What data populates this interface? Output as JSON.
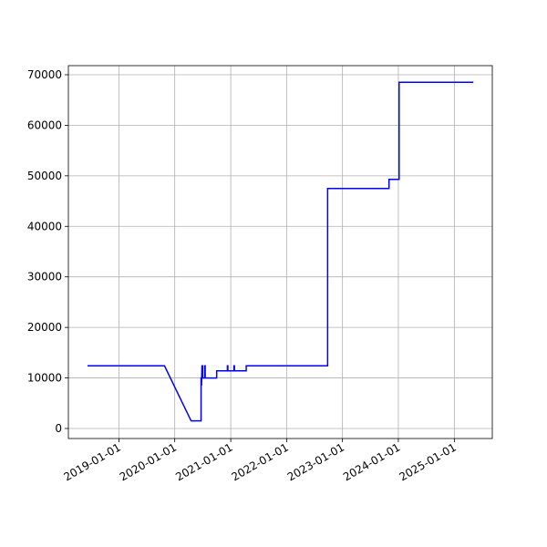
{
  "chart_data": {
    "type": "line",
    "x": [
      "2018-06-10",
      "2019-10-26",
      "2020-04-17",
      "2020-06-21",
      "2020-06-21",
      "2020-06-24",
      "2020-06-24",
      "2020-06-27",
      "2020-07-01",
      "2020-07-01",
      "2020-07-15",
      "2020-07-15",
      "2020-07-18",
      "2020-07-18",
      "2020-10-01",
      "2020-10-01",
      "2020-12-10",
      "2020-12-10",
      "2020-12-13",
      "2020-12-13",
      "2021-01-22",
      "2021-01-22",
      "2021-01-25",
      "2021-01-25",
      "2021-04-12",
      "2021-04-12",
      "2022-09-26",
      "2022-09-26",
      "2023-11-01",
      "2023-11-01",
      "2024-01-06",
      "2024-01-06",
      "2025-05-05"
    ],
    "series": [
      {
        "color": "#0000ff",
        "values": [
          12400,
          12400,
          1500,
          1500,
          10000,
          10000,
          8500,
          12400,
          12400,
          10000,
          10000,
          12400,
          12400,
          10000,
          10000,
          11400,
          11400,
          12400,
          12400,
          11400,
          11400,
          12400,
          12400,
          11400,
          11400,
          12400,
          12400,
          47500,
          47500,
          49300,
          49300,
          68500,
          68500
        ]
      }
    ],
    "xlim": [
      "2018-02-05",
      "2025-09-06"
    ],
    "xticks": [
      "2019-01-01",
      "2020-01-01",
      "2021-01-01",
      "2022-01-01",
      "2023-01-01",
      "2024-01-01",
      "2025-01-01"
    ],
    "ylim": [
      -1985,
      71800
    ],
    "yticks": [
      0,
      10000,
      20000,
      30000,
      40000,
      50000,
      60000,
      70000
    ],
    "grid": true
  }
}
